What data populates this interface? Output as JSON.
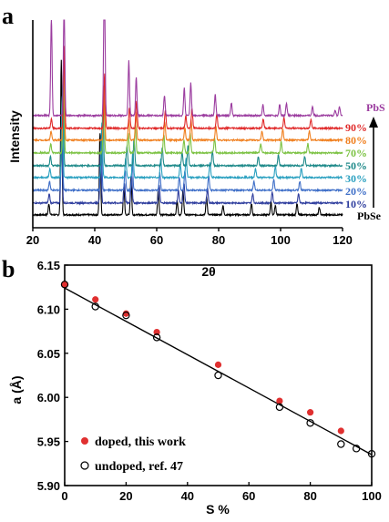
{
  "chart_data": [
    {
      "panel": "a",
      "type": "line",
      "xlabel": "2θ",
      "ylabel": "Intensity",
      "xlim": [
        20,
        120
      ],
      "xticks": [
        20,
        40,
        60,
        80,
        100,
        120
      ],
      "series": [
        {
          "name": "PbSe",
          "color": "#000000",
          "peaks": [
            [
              25.2,
              12
            ],
            [
              29.2,
              170
            ],
            [
              41.7,
              90
            ],
            [
              49.4,
              30
            ],
            [
              51.7,
              42
            ],
            [
              60.5,
              28
            ],
            [
              66.6,
              16
            ],
            [
              68.5,
              28
            ],
            [
              76.1,
              20
            ],
            [
              81.4,
              10
            ],
            [
              90.6,
              12
            ],
            [
              96.9,
              14
            ],
            [
              98.3,
              10
            ],
            [
              105.3,
              12
            ],
            [
              112.5,
              8
            ]
          ]
        },
        {
          "name": "10%",
          "color": "#2f3e9e",
          "peaks": [
            [
              25.3,
              10
            ],
            [
              29.3,
              90
            ],
            [
              41.9,
              60
            ],
            [
              49.6,
              22
            ],
            [
              51.9,
              30
            ],
            [
              60.8,
              20
            ],
            [
              67.0,
              14
            ],
            [
              68.8,
              22
            ],
            [
              76.4,
              16
            ],
            [
              91.0,
              10
            ],
            [
              97.3,
              12
            ],
            [
              105.8,
              10
            ]
          ]
        },
        {
          "name": "20%",
          "color": "#3f6fc8",
          "peaks": [
            [
              25.4,
              10
            ],
            [
              29.4,
              90
            ],
            [
              42.1,
              60
            ],
            [
              49.8,
              22
            ],
            [
              52.1,
              30
            ],
            [
              61.0,
              20
            ],
            [
              67.3,
              14
            ],
            [
              69.1,
              22
            ],
            [
              76.8,
              16
            ],
            [
              91.4,
              10
            ],
            [
              97.8,
              12
            ],
            [
              106.2,
              10
            ]
          ]
        },
        {
          "name": "30%",
          "color": "#2aa0c0",
          "peaks": [
            [
              25.5,
              10
            ],
            [
              29.5,
              90
            ],
            [
              42.3,
              60
            ],
            [
              50.0,
              22
            ],
            [
              52.3,
              30
            ],
            [
              61.3,
              20
            ],
            [
              67.6,
              14
            ],
            [
              69.5,
              22
            ],
            [
              77.2,
              16
            ],
            [
              91.9,
              10
            ],
            [
              98.3,
              12
            ],
            [
              106.7,
              10
            ]
          ]
        },
        {
          "name": "50%",
          "color": "#1f8a8a",
          "peaks": [
            [
              25.7,
              10
            ],
            [
              29.7,
              90
            ],
            [
              42.6,
              60
            ],
            [
              50.4,
              22
            ],
            [
              52.7,
              30
            ],
            [
              61.8,
              20
            ],
            [
              68.2,
              14
            ],
            [
              70.1,
              22
            ],
            [
              78.0,
              16
            ],
            [
              92.8,
              10
            ],
            [
              99.3,
              12
            ],
            [
              107.8,
              10
            ]
          ]
        },
        {
          "name": "70%",
          "color": "#7cc243",
          "peaks": [
            [
              25.8,
              10
            ],
            [
              29.9,
              90
            ],
            [
              42.9,
              60
            ],
            [
              50.8,
              22
            ],
            [
              53.1,
              30
            ],
            [
              62.3,
              20
            ],
            [
              68.8,
              14
            ],
            [
              70.8,
              22
            ],
            [
              78.7,
              16
            ],
            [
              93.6,
              10
            ],
            [
              100.2,
              12
            ],
            [
              108.8,
              10
            ]
          ]
        },
        {
          "name": "80%",
          "color": "#f07f1e",
          "peaks": [
            [
              25.9,
              10
            ],
            [
              30.0,
              90
            ],
            [
              43.0,
              60
            ],
            [
              51.0,
              22
            ],
            [
              53.3,
              30
            ],
            [
              62.6,
              20
            ],
            [
              69.1,
              14
            ],
            [
              71.1,
              22
            ],
            [
              79.1,
              16
            ],
            [
              94.0,
              10
            ],
            [
              100.7,
              12
            ],
            [
              109.3,
              10
            ]
          ]
        },
        {
          "name": "90%",
          "color": "#e02a2a",
          "peaks": [
            [
              26.0,
              10
            ],
            [
              30.1,
              90
            ],
            [
              43.2,
              60
            ],
            [
              51.2,
              22
            ],
            [
              53.5,
              30
            ],
            [
              62.8,
              20
            ],
            [
              69.4,
              14
            ],
            [
              71.4,
              22
            ],
            [
              79.4,
              16
            ],
            [
              94.4,
              10
            ],
            [
              101.1,
              12
            ],
            [
              109.8,
              10
            ]
          ]
        },
        {
          "name": "PbS",
          "color": "#9b3c9f",
          "peaks": [
            [
              26.0,
              110
            ],
            [
              30.1,
              130
            ],
            [
              43.1,
              170
            ],
            [
              51.0,
              60
            ],
            [
              53.4,
              42
            ],
            [
              62.5,
              22
            ],
            [
              68.9,
              30
            ],
            [
              71.0,
              36
            ],
            [
              78.9,
              24
            ],
            [
              84.1,
              14
            ],
            [
              94.3,
              12
            ],
            [
              99.7,
              12
            ],
            [
              101.9,
              14
            ],
            [
              110.3,
              10
            ],
            [
              117.6,
              6
            ],
            [
              119.0,
              10
            ]
          ]
        }
      ],
      "annotations": {
        "left_end": "PbS",
        "right_end": "PbSe"
      }
    },
    {
      "panel": "b",
      "type": "scatter",
      "xlabel": "S %",
      "ylabel": "a (Å)",
      "xlim": [
        0,
        100
      ],
      "ylim": [
        5.9,
        6.15
      ],
      "xticks": [
        0,
        20,
        40,
        60,
        80,
        100
      ],
      "yticks": [
        "5.90",
        "5.95",
        "6.00",
        "6.05",
        "6.10",
        "6.15"
      ],
      "series": [
        {
          "name": "doped, this work",
          "color": "#e03030",
          "marker": "filled",
          "x": [
            0,
            10,
            20,
            30,
            50,
            70,
            80,
            90
          ],
          "y": [
            6.128,
            6.111,
            6.095,
            6.074,
            6.037,
            5.996,
            5.983,
            5.962
          ]
        },
        {
          "name": "undoped, ref. 47",
          "color": "#000000",
          "marker": "open",
          "x": [
            0,
            10,
            20,
            30,
            50,
            70,
            80,
            90,
            95,
            100
          ],
          "y": [
            6.128,
            6.103,
            6.093,
            6.068,
            6.025,
            5.989,
            5.971,
            5.947,
            5.942,
            5.936
          ]
        }
      ],
      "fit_line": {
        "x": [
          0,
          100
        ],
        "y": [
          6.124,
          5.935
        ]
      }
    }
  ]
}
